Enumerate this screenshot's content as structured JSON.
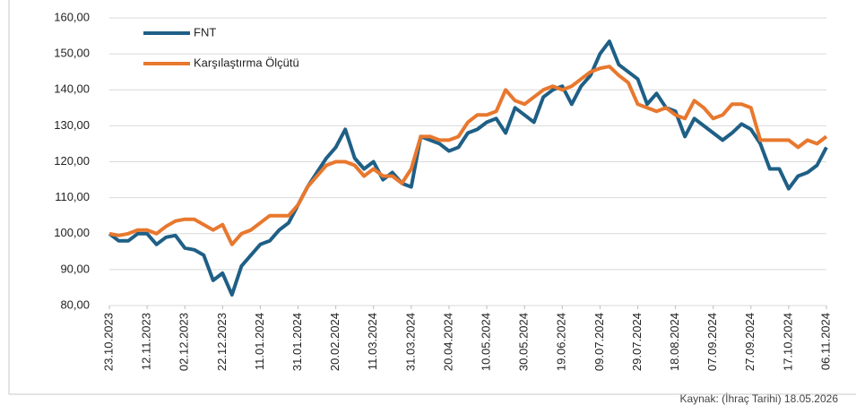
{
  "chart_data": {
    "type": "line",
    "x": [
      "23.10.2023",
      "28.10.2023",
      "02.11.2023",
      "07.11.2023",
      "12.11.2023",
      "17.11.2023",
      "22.11.2023",
      "27.11.2023",
      "02.12.2023",
      "07.12.2023",
      "12.12.2023",
      "17.12.2023",
      "22.12.2023",
      "27.12.2023",
      "01.01.2024",
      "06.01.2024",
      "11.01.2024",
      "16.01.2024",
      "21.01.2024",
      "26.01.2024",
      "31.01.2024",
      "05.02.2024",
      "10.02.2024",
      "15.02.2024",
      "20.02.2024",
      "25.02.2024",
      "01.03.2024",
      "06.03.2024",
      "11.03.2024",
      "16.03.2024",
      "21.03.2024",
      "26.03.2024",
      "31.03.2024",
      "05.04.2024",
      "10.04.2024",
      "15.04.2024",
      "20.04.2024",
      "25.04.2024",
      "30.04.2024",
      "05.05.2024",
      "10.05.2024",
      "15.05.2024",
      "20.05.2024",
      "25.05.2024",
      "30.05.2024",
      "04.06.2024",
      "09.06.2024",
      "14.06.2024",
      "19.06.2024",
      "24.06.2024",
      "29.06.2024",
      "04.07.2024",
      "09.07.2024",
      "14.07.2024",
      "19.07.2024",
      "24.07.2024",
      "29.07.2024",
      "03.08.2024",
      "08.08.2024",
      "13.08.2024",
      "18.08.2024",
      "23.08.2024",
      "28.08.2024",
      "02.09.2024",
      "07.09.2024",
      "12.09.2024",
      "17.09.2024",
      "22.09.2024",
      "27.09.2024",
      "02.10.2024",
      "07.10.2024",
      "12.10.2024",
      "17.10.2024",
      "22.10.2024",
      "27.10.2024",
      "01.11.2024",
      "06.11.2024"
    ],
    "series": [
      {
        "name": "FNT",
        "color": "#1f5f86",
        "values": [
          100,
          98,
          98,
          100,
          100,
          97,
          99,
          99.5,
          96,
          95.5,
          94,
          87,
          89,
          83,
          91,
          94,
          97,
          98,
          101,
          103,
          108,
          113,
          117,
          121,
          124,
          129,
          121,
          118,
          120,
          115,
          117,
          114,
          113,
          127,
          126,
          125,
          123,
          124,
          128,
          129,
          131,
          132,
          128,
          135,
          133,
          131,
          138,
          140,
          141,
          136,
          141,
          144,
          150,
          153.5,
          147,
          145,
          143,
          136,
          139,
          135,
          134,
          127,
          132,
          130,
          128,
          126,
          128,
          130.5,
          129,
          125,
          118,
          118,
          112.5,
          116,
          117,
          119,
          124
        ]
      },
      {
        "name": "Karşılaştırma Ölçütü",
        "color": "#e8782e",
        "values": [
          100,
          99.5,
          100,
          101,
          101,
          100,
          102,
          103.5,
          104,
          104,
          102.5,
          101,
          102.5,
          97,
          100,
          101,
          103,
          105,
          105,
          105,
          108,
          113,
          116,
          119,
          120,
          120,
          119,
          116,
          118,
          116,
          116,
          114,
          118,
          127,
          127,
          126,
          126,
          127,
          131,
          133,
          133,
          134,
          140,
          137,
          136,
          138,
          140,
          141,
          140,
          141,
          143,
          145,
          146,
          146.5,
          144,
          142,
          136,
          135,
          134,
          135,
          133,
          132,
          137,
          135,
          132,
          133,
          136,
          136,
          135,
          126,
          126,
          126,
          126,
          124,
          126,
          125,
          127
        ]
      }
    ],
    "xlim": [
      "23.10.2023",
      "06.11.2024"
    ],
    "xticks": [
      "23.10.2023",
      "12.11.2023",
      "02.12.2023",
      "22.12.2023",
      "11.01.2024",
      "31.01.2024",
      "20.02.2024",
      "11.03.2024",
      "31.03.2024",
      "20.04.2024",
      "10.05.2024",
      "30.05.2024",
      "19.06.2024",
      "09.07.2024",
      "29.07.2024",
      "18.08.2024",
      "07.09.2024",
      "27.09.2024",
      "17.10.2024",
      "06.11.2024"
    ],
    "ylim": [
      80,
      160
    ],
    "yticks": [
      {
        "value": 80,
        "label": "80,00"
      },
      {
        "value": 90,
        "label": "90,00"
      },
      {
        "value": 100,
        "label": "100,00"
      },
      {
        "value": 110,
        "label": "110,00"
      },
      {
        "value": 120,
        "label": "120,00"
      },
      {
        "value": 130,
        "label": "130,00"
      },
      {
        "value": 140,
        "label": "140,00"
      },
      {
        "value": 150,
        "label": "150,00"
      },
      {
        "value": 160,
        "label": "160,00"
      }
    ],
    "grid": true,
    "legend": "upper left",
    "source": "Kaynak: (İhraç Tarihi) 18.05.2026"
  }
}
